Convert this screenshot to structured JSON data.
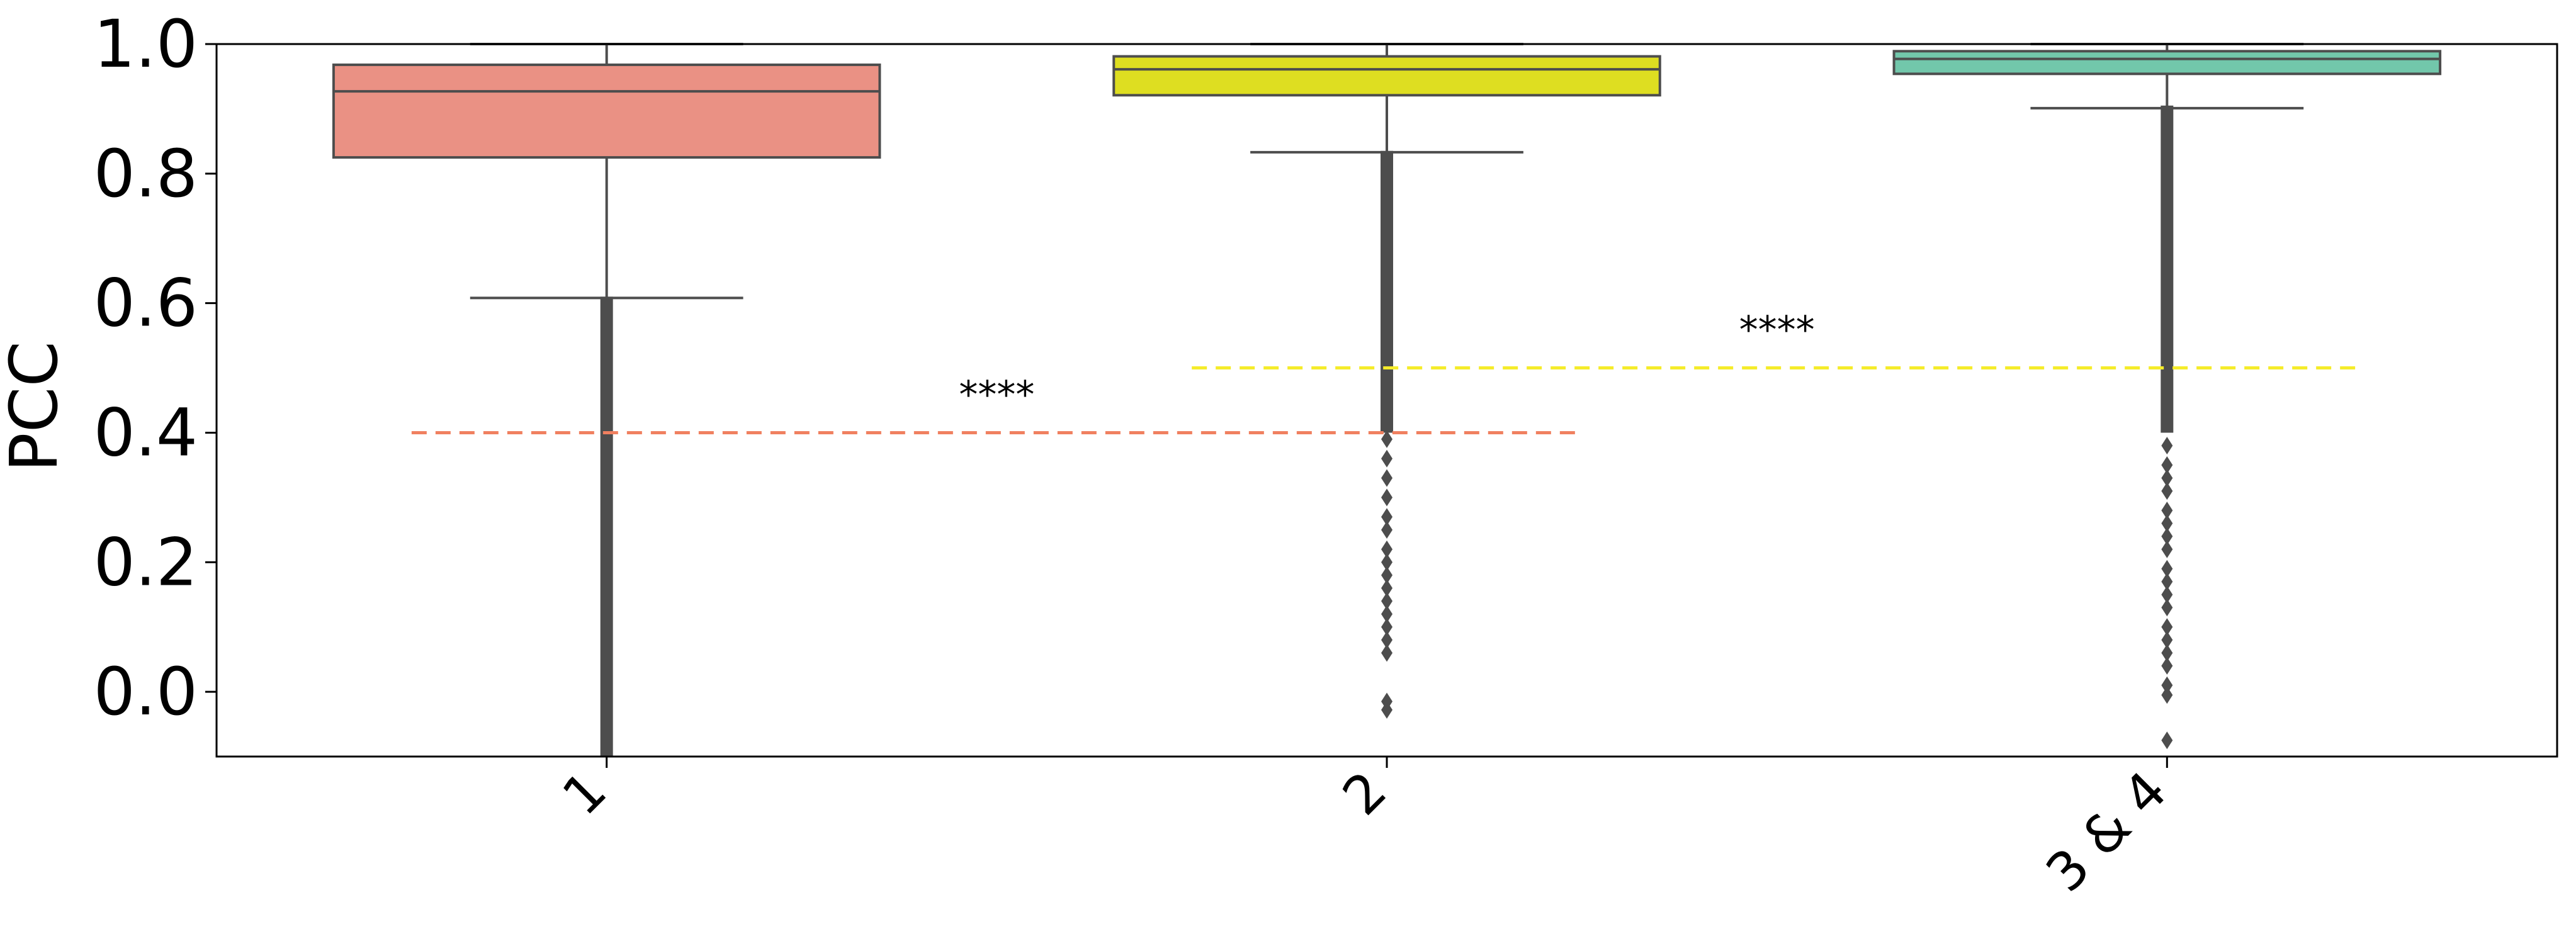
{
  "chart_data": {
    "type": "box",
    "ylabel": "PCC",
    "xlabel": "",
    "ylim": [
      -0.1,
      1.0
    ],
    "yticks": [
      "0.0",
      "0.2",
      "0.4",
      "0.6",
      "0.8",
      "1.0"
    ],
    "grid": false,
    "categories": [
      "1",
      "2",
      "3 & 4"
    ],
    "boxes": [
      {
        "category": "1",
        "color": "#EA9184",
        "q1": 0.825,
        "median": 0.927,
        "q3": 0.968,
        "whisker_low": 0.608,
        "whisker_high": 1.0,
        "outlier_range": [
          -0.1,
          0.61
        ]
      },
      {
        "category": "2",
        "color": "#DEDE21",
        "q1": 0.921,
        "median": 0.961,
        "q3": 0.981,
        "whisker_low": 0.833,
        "whisker_high": 1.0,
        "outlier_range": [
          0.4,
          0.835
        ],
        "sparse_outliers": [
          0.39,
          0.36,
          0.33,
          0.3,
          0.27,
          0.25,
          0.22,
          0.2,
          0.18,
          0.16,
          0.14,
          0.12,
          0.1,
          0.08,
          0.06,
          -0.015,
          -0.028
        ]
      },
      {
        "category": "3 & 4",
        "color": "#72C7AB",
        "q1": 0.954,
        "median": 0.977,
        "q3": 0.989,
        "whisker_low": 0.901,
        "whisker_high": 1.0,
        "outlier_range": [
          0.4,
          0.905
        ],
        "sparse_outliers": [
          0.38,
          0.35,
          0.33,
          0.31,
          0.28,
          0.26,
          0.24,
          0.22,
          0.19,
          0.17,
          0.15,
          0.13,
          0.1,
          0.08,
          0.06,
          0.04,
          0.01,
          -0.005,
          -0.075
        ]
      }
    ],
    "significance": [
      {
        "label": "****",
        "from": 0,
        "to": 1,
        "y": 0.4,
        "color": "#F08060"
      },
      {
        "label": "****",
        "from": 1,
        "to": 2,
        "y": 0.5,
        "color": "#F5EC2A"
      }
    ],
    "line_color": "#4d4d4d"
  }
}
